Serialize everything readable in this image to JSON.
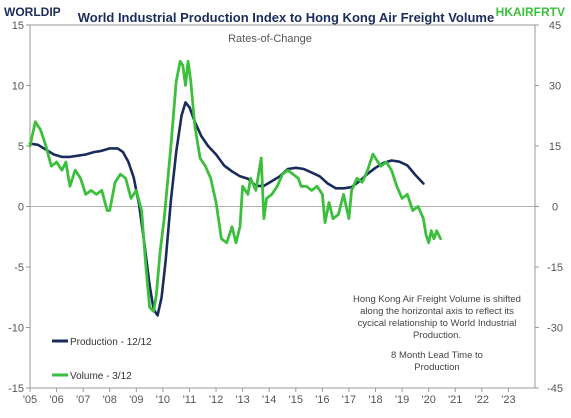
{
  "header": {
    "left_code": "WORLDIP",
    "right_code": "HKAIRFRTV",
    "left_code_color": "#1a2c5b",
    "right_code_color": "#3cbf3c"
  },
  "chart_data": {
    "type": "line",
    "title": "World Industrial Production Index to Hong Kong Air Freight Volume",
    "subtitle": "Rates-of-Change",
    "x_ticks": [
      "'05",
      "'06",
      "'07",
      "'08",
      "'09",
      "'10",
      "'11",
      "'12",
      "'13",
      "'14",
      "'15",
      "'16",
      "'17",
      "'18",
      "'19",
      "'20",
      "'21",
      "'22",
      "'23"
    ],
    "xlim": [
      2005.0,
      2024.0
    ],
    "y_left": {
      "lim": [
        -15,
        15
      ],
      "ticks": [
        15,
        10,
        5,
        0,
        -5,
        -10,
        -15
      ]
    },
    "y_right": {
      "lim": [
        -45,
        45
      ],
      "ticks": [
        45,
        30,
        15,
        0,
        -15,
        -30,
        -45
      ]
    },
    "grid": false,
    "zero_line": true,
    "legend": [
      {
        "label": "Production - 12/12",
        "color": "#1a2c5b"
      },
      {
        "label": "Volume - 3/12",
        "color": "#3cbf3c"
      }
    ],
    "annotations": [
      "Hong Kong Air Freight Volume is shifted",
      "along the horizontal axis to reflect its",
      "cycical relationship to World Industrial",
      "Production.",
      "8 Month Lead Time to",
      "Production"
    ],
    "series": [
      {
        "name": "Production - 12/12",
        "axis": "left",
        "color": "#1a2c5b",
        "points": [
          [
            2005.0,
            5.2
          ],
          [
            2005.3,
            5.1
          ],
          [
            2005.6,
            4.7
          ],
          [
            2005.9,
            4.3
          ],
          [
            2006.2,
            4.1
          ],
          [
            2006.5,
            4.1
          ],
          [
            2006.8,
            4.2
          ],
          [
            2007.1,
            4.3
          ],
          [
            2007.4,
            4.5
          ],
          [
            2007.7,
            4.6
          ],
          [
            2008.0,
            4.8
          ],
          [
            2008.3,
            4.8
          ],
          [
            2008.5,
            4.5
          ],
          [
            2008.7,
            3.7
          ],
          [
            2008.9,
            2.4
          ],
          [
            2009.1,
            0.2
          ],
          [
            2009.3,
            -3.0
          ],
          [
            2009.5,
            -6.5
          ],
          [
            2009.65,
            -8.5
          ],
          [
            2009.8,
            -9.0
          ],
          [
            2009.95,
            -7.5
          ],
          [
            2010.1,
            -4.5
          ],
          [
            2010.3,
            0.5
          ],
          [
            2010.5,
            4.5
          ],
          [
            2010.7,
            7.5
          ],
          [
            2010.85,
            8.6
          ],
          [
            2011.0,
            8.2
          ],
          [
            2011.2,
            7.0
          ],
          [
            2011.45,
            5.8
          ],
          [
            2011.7,
            5.0
          ],
          [
            2012.0,
            4.3
          ],
          [
            2012.3,
            3.4
          ],
          [
            2012.6,
            2.9
          ],
          [
            2012.9,
            2.5
          ],
          [
            2013.2,
            2.3
          ],
          [
            2013.5,
            1.7
          ],
          [
            2013.8,
            1.7
          ],
          [
            2014.1,
            2.1
          ],
          [
            2014.4,
            2.5
          ],
          [
            2014.7,
            3.1
          ],
          [
            2015.0,
            3.2
          ],
          [
            2015.3,
            3.1
          ],
          [
            2015.6,
            2.8
          ],
          [
            2015.9,
            2.5
          ],
          [
            2016.2,
            1.9
          ],
          [
            2016.5,
            1.5
          ],
          [
            2016.8,
            1.5
          ],
          [
            2017.1,
            1.6
          ],
          [
            2017.4,
            2.1
          ],
          [
            2017.7,
            2.7
          ],
          [
            2018.0,
            3.2
          ],
          [
            2018.3,
            3.6
          ],
          [
            2018.6,
            3.8
          ],
          [
            2018.9,
            3.7
          ],
          [
            2019.2,
            3.4
          ],
          [
            2019.5,
            2.6
          ],
          [
            2019.8,
            1.9
          ]
        ]
      },
      {
        "name": "Volume - 3/12",
        "axis": "right",
        "color": "#3cbf3c",
        "points": [
          [
            2005.0,
            15
          ],
          [
            2005.2,
            21
          ],
          [
            2005.4,
            19
          ],
          [
            2005.6,
            15
          ],
          [
            2005.8,
            10
          ],
          [
            2006.0,
            11
          ],
          [
            2006.2,
            9
          ],
          [
            2006.35,
            11
          ],
          [
            2006.5,
            5
          ],
          [
            2006.7,
            9
          ],
          [
            2006.9,
            7
          ],
          [
            2007.1,
            3
          ],
          [
            2007.3,
            4
          ],
          [
            2007.5,
            3
          ],
          [
            2007.7,
            4
          ],
          [
            2007.9,
            -1
          ],
          [
            2008.0,
            -1
          ],
          [
            2008.2,
            6
          ],
          [
            2008.4,
            8
          ],
          [
            2008.6,
            7
          ],
          [
            2008.8,
            2
          ],
          [
            2009.0,
            4
          ],
          [
            2009.2,
            -1
          ],
          [
            2009.35,
            -14
          ],
          [
            2009.5,
            -25
          ],
          [
            2009.65,
            -26
          ],
          [
            2009.75,
            -22
          ],
          [
            2009.9,
            -11
          ],
          [
            2010.05,
            -3
          ],
          [
            2010.3,
            15
          ],
          [
            2010.5,
            31
          ],
          [
            2010.65,
            36
          ],
          [
            2010.75,
            35
          ],
          [
            2010.85,
            30
          ],
          [
            2010.95,
            36
          ],
          [
            2011.05,
            31
          ],
          [
            2011.2,
            20
          ],
          [
            2011.4,
            12
          ],
          [
            2011.6,
            10
          ],
          [
            2011.8,
            7
          ],
          [
            2012.0,
            1
          ],
          [
            2012.2,
            -8
          ],
          [
            2012.4,
            -9
          ],
          [
            2012.6,
            -5
          ],
          [
            2012.75,
            -9
          ],
          [
            2012.9,
            -5
          ],
          [
            2013.0,
            5
          ],
          [
            2013.2,
            3
          ],
          [
            2013.3,
            7
          ],
          [
            2013.5,
            4
          ],
          [
            2013.7,
            12
          ],
          [
            2013.8,
            -3
          ],
          [
            2013.9,
            2
          ],
          [
            2014.1,
            3
          ],
          [
            2014.3,
            5
          ],
          [
            2014.5,
            8
          ],
          [
            2014.7,
            9
          ],
          [
            2014.9,
            8
          ],
          [
            2015.1,
            7
          ],
          [
            2015.2,
            5
          ],
          [
            2015.4,
            5
          ],
          [
            2015.6,
            4
          ],
          [
            2015.8,
            5
          ],
          [
            2016.0,
            3
          ],
          [
            2016.1,
            -4
          ],
          [
            2016.25,
            1
          ],
          [
            2016.4,
            -3
          ],
          [
            2016.6,
            -2
          ],
          [
            2016.8,
            3
          ],
          [
            2017.0,
            -3
          ],
          [
            2017.1,
            4
          ],
          [
            2017.3,
            7
          ],
          [
            2017.5,
            6
          ],
          [
            2017.7,
            9
          ],
          [
            2017.9,
            13
          ],
          [
            2018.0,
            12
          ],
          [
            2018.2,
            10
          ],
          [
            2018.4,
            11
          ],
          [
            2018.6,
            9
          ],
          [
            2018.8,
            5
          ],
          [
            2019.0,
            2
          ],
          [
            2019.2,
            3
          ],
          [
            2019.4,
            -1
          ],
          [
            2019.6,
            0
          ],
          [
            2019.8,
            -3
          ],
          [
            2019.9,
            -7
          ],
          [
            2020.0,
            -9
          ],
          [
            2020.1,
            -6
          ],
          [
            2020.2,
            -8
          ],
          [
            2020.3,
            -6
          ],
          [
            2020.45,
            -8
          ]
        ]
      }
    ]
  }
}
